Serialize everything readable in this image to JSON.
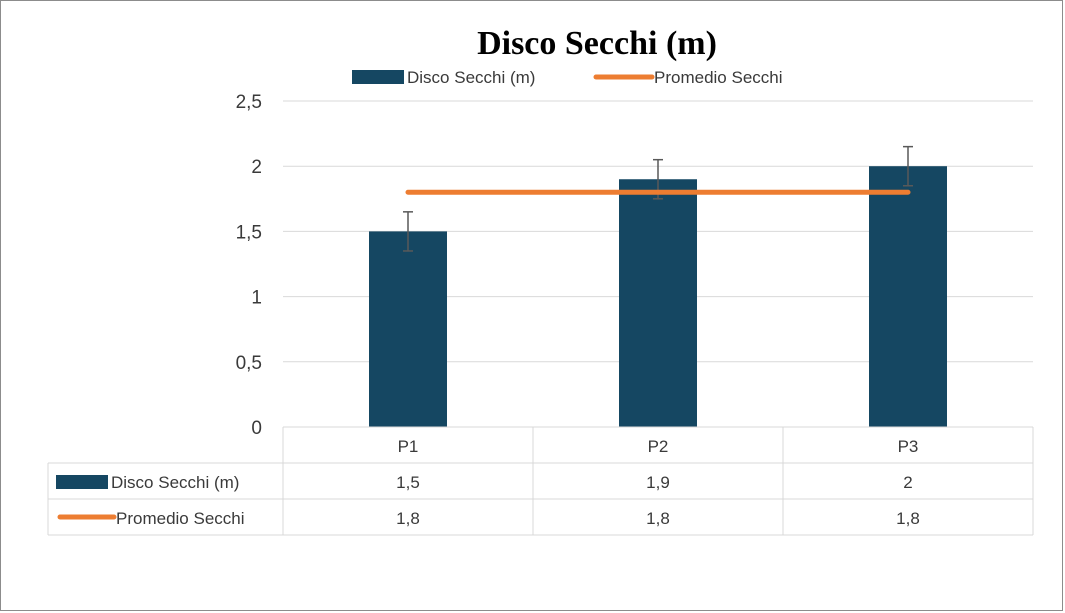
{
  "chart_data": {
    "type": "bar",
    "title": "Disco Secchi (m)",
    "categories": [
      "P1",
      "P2",
      "P3"
    ],
    "series": [
      {
        "name": "Disco Secchi (m)",
        "type": "bar",
        "values": [
          1.5,
          1.9,
          2
        ],
        "value_labels": [
          "1,5",
          "1,9",
          "2"
        ],
        "error": [
          0.15,
          0.15,
          0.15
        ],
        "color": "#154762"
      },
      {
        "name": "Promedio Secchi",
        "type": "line",
        "values": [
          1.8,
          1.8,
          1.8
        ],
        "value_labels": [
          "1,8",
          "1,8",
          "1,8"
        ],
        "color": "#ed7d31"
      }
    ],
    "ylim": [
      0,
      2.5
    ],
    "yticks": [
      0,
      0.5,
      1,
      1.5,
      2,
      2.5
    ],
    "ytick_labels": [
      "0",
      "0,5",
      "1",
      "1,5",
      "2",
      "2,5"
    ],
    "legend_position": "top",
    "grid": true,
    "data_table": true
  }
}
